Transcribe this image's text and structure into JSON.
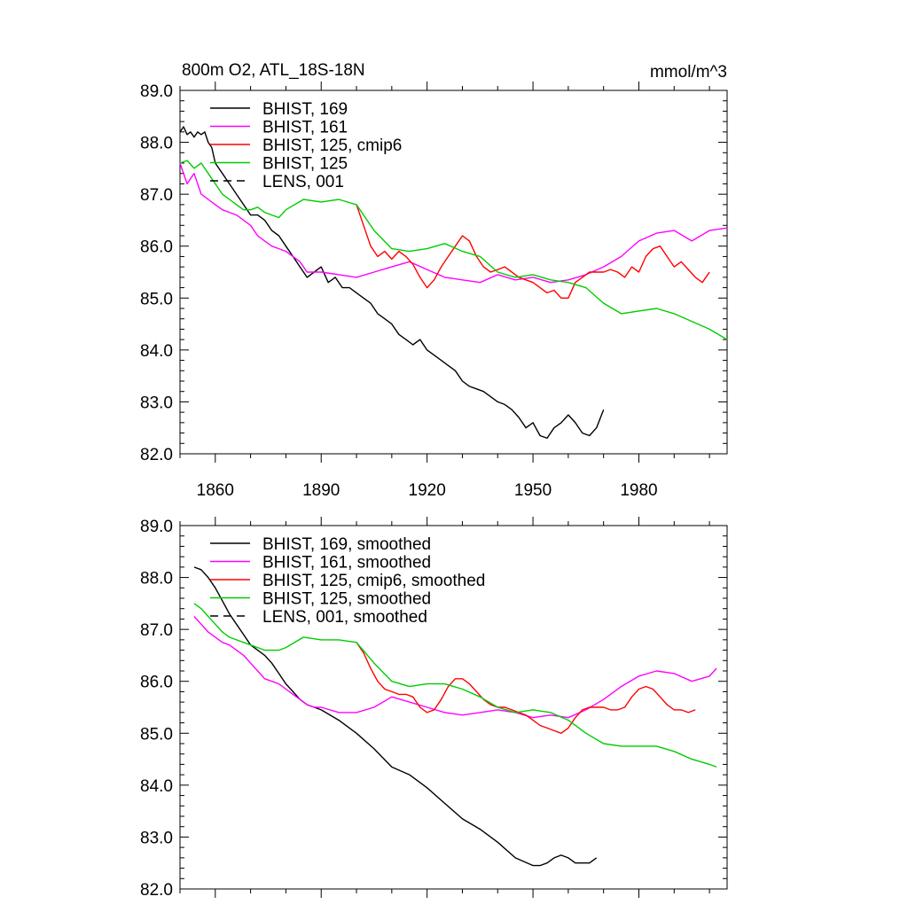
{
  "figure": {
    "title": "800m O2, ATL_18S-18N",
    "units": "mmol/m^3"
  },
  "chart_data": [
    {
      "type": "line",
      "panel": "top",
      "title": "800m O2, ATL_18S-18N",
      "units_label": "mmol/m^3",
      "xlim": [
        1850,
        2005
      ],
      "ylim": [
        82.0,
        89.0
      ],
      "xticks": [
        1860,
        1890,
        1920,
        1950,
        1980
      ],
      "yticks": [
        82.0,
        83.0,
        84.0,
        85.0,
        86.0,
        87.0,
        88.0,
        89.0
      ],
      "ytick_labels": [
        "82.0",
        "83.0",
        "84.0",
        "85.0",
        "86.0",
        "87.0",
        "88.0",
        "89.0"
      ],
      "grid": false,
      "legend": "top-left",
      "series": [
        {
          "name": "BHIST, 169",
          "color": "#000000",
          "dash": "solid",
          "x": [
            1850,
            1851,
            1852,
            1853,
            1854,
            1855,
            1856,
            1857,
            1858,
            1859,
            1860,
            1862,
            1864,
            1866,
            1868,
            1870,
            1872,
            1874,
            1876,
            1878,
            1880,
            1882,
            1884,
            1886,
            1888,
            1890,
            1892,
            1894,
            1896,
            1898,
            1900,
            1902,
            1904,
            1906,
            1908,
            1910,
            1912,
            1914,
            1916,
            1918,
            1920,
            1922,
            1924,
            1926,
            1928,
            1930,
            1932,
            1934,
            1936,
            1938,
            1940,
            1942,
            1944,
            1946,
            1948,
            1950,
            1952,
            1954,
            1956,
            1958,
            1960,
            1962,
            1964,
            1966,
            1968,
            1970
          ],
          "values": [
            88.2,
            88.3,
            88.15,
            88.2,
            88.1,
            88.2,
            88.15,
            88.2,
            88.0,
            87.9,
            87.6,
            87.4,
            87.2,
            87.0,
            86.8,
            86.6,
            86.6,
            86.5,
            86.3,
            86.2,
            86.0,
            85.8,
            85.6,
            85.4,
            85.5,
            85.6,
            85.3,
            85.4,
            85.2,
            85.2,
            85.1,
            85.0,
            84.9,
            84.7,
            84.6,
            84.5,
            84.3,
            84.2,
            84.1,
            84.2,
            84.0,
            83.9,
            83.8,
            83.7,
            83.6,
            83.4,
            83.3,
            83.25,
            83.2,
            83.1,
            83.0,
            82.95,
            82.85,
            82.7,
            82.5,
            82.6,
            82.35,
            82.3,
            82.5,
            82.6,
            82.75,
            82.6,
            82.4,
            82.35,
            82.5,
            82.85
          ]
        },
        {
          "name": "BHIST, 161",
          "color": "#ff00ff",
          "dash": "solid",
          "x": [
            1850,
            1852,
            1854,
            1856,
            1858,
            1860,
            1862,
            1864,
            1866,
            1868,
            1870,
            1872,
            1874,
            1876,
            1878,
            1880,
            1882,
            1884,
            1886,
            1888,
            1890,
            1895,
            1900,
            1905,
            1910,
            1915,
            1920,
            1925,
            1930,
            1935,
            1940,
            1945,
            1950,
            1955,
            1960,
            1965,
            1970,
            1975,
            1980,
            1985,
            1990,
            1995,
            2000,
            2005
          ],
          "values": [
            87.6,
            87.2,
            87.4,
            87.0,
            86.9,
            86.8,
            86.7,
            86.65,
            86.6,
            86.5,
            86.4,
            86.2,
            86.1,
            86.0,
            85.95,
            85.9,
            85.8,
            85.7,
            85.5,
            85.5,
            85.5,
            85.45,
            85.4,
            85.5,
            85.6,
            85.7,
            85.55,
            85.4,
            85.35,
            85.3,
            85.45,
            85.35,
            85.4,
            85.3,
            85.35,
            85.45,
            85.6,
            85.8,
            86.1,
            86.25,
            86.3,
            86.1,
            86.3,
            86.35
          ]
        },
        {
          "name": "BHIST, 125, cmip6",
          "color": "#ff0000",
          "dash": "solid",
          "x": [
            1900,
            1902,
            1904,
            1906,
            1908,
            1910,
            1912,
            1914,
            1916,
            1918,
            1920,
            1922,
            1924,
            1926,
            1928,
            1930,
            1932,
            1934,
            1936,
            1938,
            1940,
            1942,
            1944,
            1946,
            1948,
            1950,
            1952,
            1954,
            1956,
            1958,
            1960,
            1962,
            1964,
            1966,
            1968,
            1970,
            1972,
            1974,
            1976,
            1978,
            1980,
            1982,
            1984,
            1986,
            1988,
            1990,
            1992,
            1994,
            1996,
            1998,
            2000
          ],
          "values": [
            86.8,
            86.4,
            86.0,
            85.8,
            85.9,
            85.75,
            85.9,
            85.8,
            85.65,
            85.4,
            85.2,
            85.35,
            85.6,
            85.8,
            86.0,
            86.2,
            86.1,
            85.8,
            85.6,
            85.5,
            85.55,
            85.6,
            85.5,
            85.4,
            85.35,
            85.3,
            85.2,
            85.1,
            85.15,
            85.0,
            85.0,
            85.3,
            85.4,
            85.5,
            85.5,
            85.5,
            85.55,
            85.5,
            85.4,
            85.6,
            85.5,
            85.8,
            85.95,
            86.0,
            85.8,
            85.6,
            85.7,
            85.55,
            85.4,
            85.3,
            85.5
          ]
        },
        {
          "name": "BHIST, 125",
          "color": "#00cc00",
          "dash": "solid",
          "x": [
            1850,
            1852,
            1854,
            1856,
            1858,
            1860,
            1862,
            1864,
            1866,
            1868,
            1870,
            1872,
            1874,
            1876,
            1878,
            1880,
            1885,
            1890,
            1895,
            1900,
            1905,
            1910,
            1915,
            1920,
            1925,
            1930,
            1935,
            1940,
            1945,
            1950,
            1955,
            1960,
            1965,
            1970,
            1975,
            1980,
            1985,
            1990,
            1995,
            2000,
            2005
          ],
          "values": [
            87.6,
            87.65,
            87.5,
            87.6,
            87.4,
            87.2,
            87.0,
            86.9,
            86.8,
            86.7,
            86.7,
            86.75,
            86.65,
            86.6,
            86.55,
            86.7,
            86.9,
            86.85,
            86.9,
            86.8,
            86.3,
            85.95,
            85.9,
            85.95,
            86.05,
            85.9,
            85.8,
            85.5,
            85.4,
            85.45,
            85.35,
            85.3,
            85.2,
            84.9,
            84.7,
            84.75,
            84.8,
            84.7,
            84.55,
            84.4,
            84.2
          ]
        },
        {
          "name": "LENS, 001",
          "color": "#000000",
          "dash": "dashed",
          "x": [],
          "values": []
        }
      ]
    },
    {
      "type": "line",
      "panel": "bottom",
      "xlim": [
        1850,
        2005
      ],
      "ylim": [
        82.0,
        89.0
      ],
      "xticks": [
        1860,
        1890,
        1920,
        1950,
        1980
      ],
      "yticks": [
        82.0,
        83.0,
        84.0,
        85.0,
        86.0,
        87.0,
        88.0,
        89.0
      ],
      "ytick_labels": [
        "82.0",
        "83.0",
        "84.0",
        "85.0",
        "86.0",
        "87.0",
        "88.0",
        "89.0"
      ],
      "grid": false,
      "legend": "top-left",
      "series": [
        {
          "name": "BHIST, 169, smoothed",
          "color": "#000000",
          "dash": "solid",
          "x": [
            1854,
            1856,
            1858,
            1860,
            1862,
            1864,
            1866,
            1868,
            1870,
            1872,
            1874,
            1876,
            1878,
            1880,
            1882,
            1884,
            1886,
            1888,
            1890,
            1895,
            1900,
            1905,
            1910,
            1915,
            1920,
            1925,
            1930,
            1935,
            1940,
            1945,
            1950,
            1952,
            1954,
            1956,
            1958,
            1960,
            1962,
            1964,
            1966,
            1968
          ],
          "values": [
            88.2,
            88.15,
            88.0,
            87.8,
            87.55,
            87.3,
            87.1,
            86.9,
            86.7,
            86.6,
            86.5,
            86.35,
            86.15,
            85.95,
            85.8,
            85.65,
            85.55,
            85.5,
            85.45,
            85.25,
            85.0,
            84.7,
            84.35,
            84.2,
            83.95,
            83.65,
            83.35,
            83.15,
            82.9,
            82.6,
            82.45,
            82.45,
            82.5,
            82.6,
            82.65,
            82.6,
            82.5,
            82.5,
            82.5,
            82.6
          ]
        },
        {
          "name": "BHIST, 161, smoothed",
          "color": "#ff00ff",
          "dash": "solid",
          "x": [
            1854,
            1856,
            1858,
            1860,
            1862,
            1864,
            1866,
            1868,
            1870,
            1872,
            1874,
            1876,
            1878,
            1880,
            1882,
            1884,
            1886,
            1888,
            1890,
            1895,
            1900,
            1905,
            1910,
            1915,
            1920,
            1925,
            1930,
            1935,
            1940,
            1945,
            1950,
            1955,
            1960,
            1965,
            1970,
            1975,
            1980,
            1985,
            1990,
            1995,
            2000,
            2002
          ],
          "values": [
            87.25,
            87.1,
            86.95,
            86.85,
            86.75,
            86.7,
            86.6,
            86.5,
            86.35,
            86.2,
            86.05,
            86.0,
            85.95,
            85.85,
            85.75,
            85.65,
            85.55,
            85.5,
            85.5,
            85.4,
            85.4,
            85.5,
            85.7,
            85.6,
            85.5,
            85.4,
            85.35,
            85.4,
            85.45,
            85.4,
            85.3,
            85.35,
            85.3,
            85.45,
            85.65,
            85.9,
            86.1,
            86.2,
            86.15,
            86.0,
            86.1,
            86.25
          ]
        },
        {
          "name": "BHIST, 125, cmip6, smoothed",
          "color": "#ff0000",
          "dash": "solid",
          "x": [
            1900,
            1902,
            1904,
            1906,
            1908,
            1910,
            1912,
            1914,
            1916,
            1918,
            1920,
            1922,
            1924,
            1926,
            1928,
            1930,
            1932,
            1934,
            1936,
            1938,
            1940,
            1942,
            1944,
            1946,
            1948,
            1950,
            1952,
            1954,
            1956,
            1958,
            1960,
            1962,
            1964,
            1966,
            1968,
            1970,
            1972,
            1974,
            1976,
            1978,
            1980,
            1982,
            1984,
            1986,
            1988,
            1990,
            1992,
            1994,
            1996
          ],
          "values": [
            86.75,
            86.55,
            86.25,
            86.0,
            85.85,
            85.8,
            85.75,
            85.75,
            85.7,
            85.5,
            85.4,
            85.45,
            85.65,
            85.9,
            86.05,
            86.05,
            85.95,
            85.8,
            85.65,
            85.55,
            85.5,
            85.5,
            85.45,
            85.4,
            85.35,
            85.25,
            85.15,
            85.1,
            85.05,
            85.0,
            85.1,
            85.3,
            85.45,
            85.5,
            85.5,
            85.5,
            85.45,
            85.45,
            85.5,
            85.7,
            85.85,
            85.9,
            85.85,
            85.7,
            85.55,
            85.45,
            85.45,
            85.4,
            85.45
          ]
        },
        {
          "name": "BHIST, 125, smoothed",
          "color": "#00cc00",
          "dash": "solid",
          "x": [
            1854,
            1856,
            1858,
            1860,
            1862,
            1864,
            1866,
            1868,
            1870,
            1872,
            1874,
            1876,
            1878,
            1880,
            1885,
            1890,
            1895,
            1900,
            1905,
            1910,
            1915,
            1920,
            1925,
            1930,
            1935,
            1940,
            1945,
            1950,
            1955,
            1960,
            1965,
            1970,
            1975,
            1980,
            1985,
            1990,
            1995,
            2000,
            2002
          ],
          "values": [
            87.5,
            87.4,
            87.25,
            87.1,
            86.95,
            86.85,
            86.8,
            86.75,
            86.7,
            86.65,
            86.6,
            86.6,
            86.6,
            86.65,
            86.85,
            86.8,
            86.8,
            86.75,
            86.35,
            86.0,
            85.9,
            85.95,
            85.95,
            85.85,
            85.7,
            85.5,
            85.4,
            85.45,
            85.4,
            85.25,
            85.0,
            84.8,
            84.75,
            84.75,
            84.75,
            84.65,
            84.5,
            84.4,
            84.35
          ]
        },
        {
          "name": "LENS, 001, smoothed",
          "color": "#000000",
          "dash": "dashed",
          "x": [],
          "values": []
        }
      ]
    }
  ]
}
